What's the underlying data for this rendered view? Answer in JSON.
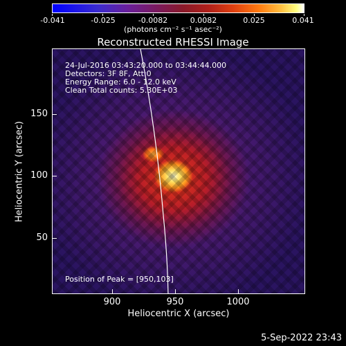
{
  "colorbar": {
    "tick_labels": [
      "-0.041",
      "-0.025",
      "-0.0082",
      "0.0082",
      "0.025",
      "0.041"
    ],
    "units": "(photons cm⁻² s⁻¹ asec⁻²)",
    "colors": [
      "#0000ff",
      "#7b1a5c",
      "#e04010",
      "#ffc040",
      "#ffffff"
    ]
  },
  "title": "Reconstructed RHESSI Image",
  "info": {
    "line1": "24-Jul-2016 03:43:20.000 to 03:44:44.000",
    "line2": "Detectors: 3F 8F, Att:0",
    "line3": "Energy Range: 6.0 - 12.0 keV",
    "line4": "Clean     Total counts: 5.30E+03",
    "peak": "Position of Peak = [950,103]"
  },
  "axes": {
    "x_title": "Heliocentric X (arcsec)",
    "y_title": "Heliocentric Y (arcsec)",
    "x_ticks": [
      "900",
      "950",
      "1000"
    ],
    "y_ticks": [
      "150",
      "100",
      "50"
    ]
  },
  "timestamp": "5-Sep-2022 23:43"
}
